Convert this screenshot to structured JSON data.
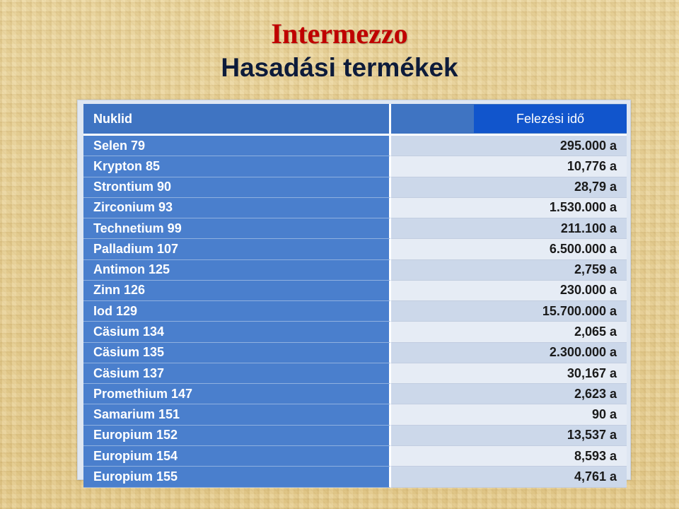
{
  "slide": {
    "title": "Intermezzo",
    "subtitle": "Hasadási termékek"
  },
  "table": {
    "header_nuclide": "Nuklid",
    "header_halflife": "Felezési idő",
    "rows": [
      {
        "nuclide": "Selen 79",
        "halflife": "295.000 a"
      },
      {
        "nuclide": "Krypton 85",
        "halflife": "10,776 a"
      },
      {
        "nuclide": "Strontium 90",
        "halflife": "28,79 a"
      },
      {
        "nuclide": "Zirconium 93",
        "halflife": "1.530.000 a"
      },
      {
        "nuclide": "Technetium 99",
        "halflife": "211.100 a"
      },
      {
        "nuclide": "Palladium 107",
        "halflife": "6.500.000 a"
      },
      {
        "nuclide": "Antimon 125",
        "halflife": "2,759 a"
      },
      {
        "nuclide": "Zinn 126",
        "halflife": "230.000 a"
      },
      {
        "nuclide": "Iod 129",
        "halflife": "15.700.000 a"
      },
      {
        "nuclide": "Cäsium 134",
        "halflife": "2,065 a"
      },
      {
        "nuclide": "Cäsium 135",
        "halflife": "2.300.000 a"
      },
      {
        "nuclide": "Cäsium 137",
        "halflife": "30,167 a"
      },
      {
        "nuclide": "Promethium 147",
        "halflife": "2,623 a"
      },
      {
        "nuclide": "Samarium 151",
        "halflife": "90 a"
      },
      {
        "nuclide": "Europium 152",
        "halflife": "13,537 a"
      },
      {
        "nuclide": "Europium 154",
        "halflife": "8,593 a"
      },
      {
        "nuclide": "Europium 155",
        "halflife": "4,761 a"
      }
    ]
  },
  "colors": {
    "title": "#c00000",
    "subtitle": "#0d1b3a",
    "header_bg": "#3f74c2",
    "halflife_header_bg": "#1155cc",
    "name_cell_bg": "#4a7fcd"
  }
}
